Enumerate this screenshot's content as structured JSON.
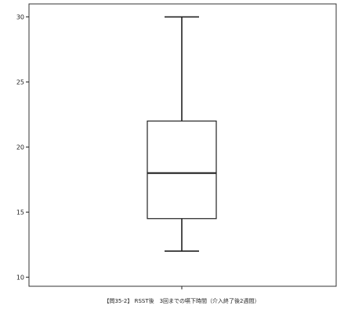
{
  "chart_data": {
    "type": "box",
    "title": "",
    "xlabel": "【問35-2】 RSST後　3回までの嚥下時間（介入終了後2週間）",
    "ylabel": "",
    "ylim": [
      9.3,
      31.0
    ],
    "yticks": [
      10,
      15,
      20,
      25,
      30
    ],
    "box": {
      "min": 12,
      "q1": 14.5,
      "median": 18,
      "q3": 22,
      "max": 30
    },
    "grid": false,
    "legend": "none",
    "colors": {
      "box_fill": "#ffffff",
      "stroke": "#222222",
      "background": "#ffffff"
    }
  }
}
